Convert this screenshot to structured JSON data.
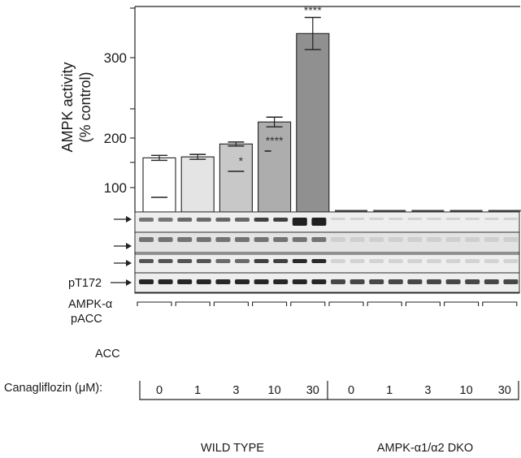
{
  "chart_data": {
    "type": "bar",
    "ylabel_line1": "AMPK activity",
    "ylabel_line2": "(% control)",
    "ylim": [
      60,
      360
    ],
    "yticks": [
      100,
      200,
      300
    ],
    "categories": [
      "0",
      "1",
      "3",
      "10",
      "30"
    ],
    "series": [
      {
        "values": [
          160,
          162,
          188,
          220,
          330
        ],
        "errors": [
          5,
          5,
          4,
          6,
          20
        ],
        "colors": [
          "#ffffff",
          "#e4e4e4",
          "#c8c8c8",
          "#adadad",
          "#909090"
        ],
        "significance": [
          "",
          "",
          "*",
          "****",
          "****"
        ]
      }
    ],
    "dko_values": [
      62,
      62,
      62,
      62,
      62
    ]
  },
  "blot_labels": {
    "pt172": "pT172",
    "ampk_alpha": "AMPK-α",
    "pacc": "pACC",
    "acc": "ACC"
  },
  "x_axis": {
    "drug_label": "Canagliflozin (μM):",
    "concentrations": [
      "0",
      "1",
      "3",
      "10",
      "30",
      "0",
      "1",
      "3",
      "10",
      "30"
    ]
  },
  "groups": {
    "wild_type": "WILD TYPE",
    "dko": "AMPK-α1/α2 DKO"
  }
}
